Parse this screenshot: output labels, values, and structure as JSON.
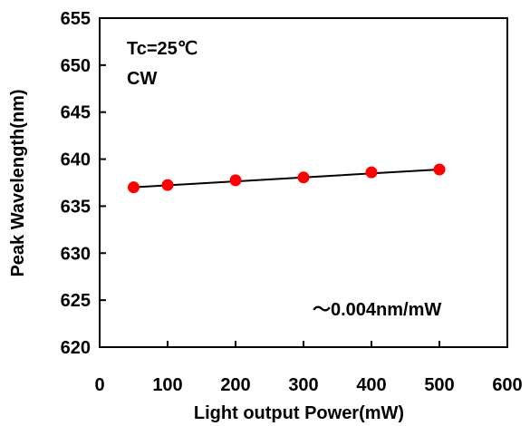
{
  "chart_data": {
    "type": "scatter",
    "xlabel": "Light output Power(mW)",
    "ylabel": "Peak Wavelength(nm)",
    "xlim": [
      0,
      600
    ],
    "ylim": [
      620,
      655
    ],
    "xticks": [
      "0",
      "100",
      "200",
      "300",
      "400",
      "500",
      "600"
    ],
    "yticks": [
      "620",
      "625",
      "630",
      "635",
      "640",
      "645",
      "650",
      "655"
    ],
    "grid": false,
    "annotations": [
      "Tc=25℃",
      "CW",
      "～0.004nm/mW"
    ],
    "series": [
      {
        "marker_color": "#ff0000",
        "x": [
          50,
          100,
          200,
          300,
          400,
          500
        ],
        "y": [
          637.0,
          637.25,
          637.75,
          638.05,
          638.6,
          638.9
        ]
      }
    ],
    "fit_line": {
      "color": "#000000",
      "x": [
        50,
        500
      ],
      "y": [
        637.0,
        638.9
      ]
    }
  }
}
